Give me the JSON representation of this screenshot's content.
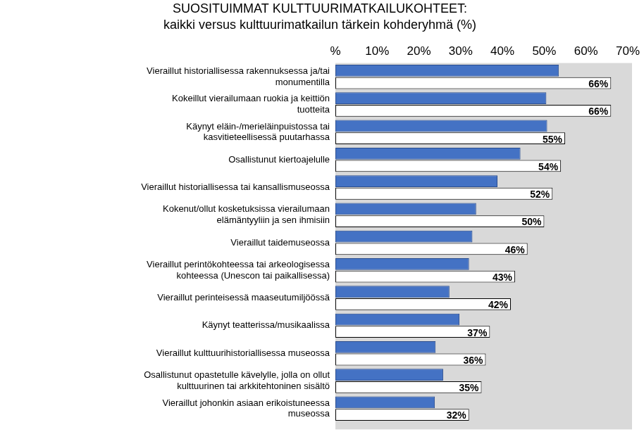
{
  "chart_data": {
    "type": "bar",
    "title": "SUOSITUIMMAT KULTTUURIMATKAILUKOHTEET:",
    "subtitle": "kaikki versus kulttuurimatkailun tärkein kohderyhmä (%)",
    "orientation": "horizontal",
    "categories": [
      "Vieraillut historiallisessa rakennuksessa ja/tai monumentilla",
      "Kokeillut vierailumaan ruokia ja keittiön tuotteita",
      "Käynyt eläin-/merieläinpuistossa tai kasvitieteellisessä puutarhassa",
      "Osallistunut kiertoajelulle",
      "Vieraillut historiallisessa tai kansallismuseossa",
      "Kokenut/ollut kosketuksissa vierailumaan elämäntyyliin ja sen ihmisiin",
      "Vieraillut taidemuseossa",
      "Vieraillut perintökohteessa tai arkeologisessa kohteessa (Unescon tai paikallisessa)",
      "Vieraillut perinteisessä maaseutumiljöössä",
      "Käynyt teatterissa/musikaalissa",
      "Vieraillut kulttuurihistoriallisessa museossa",
      "Osallistunut opastetulle kävelylle, jolla on ollut kulttuurinen tai arkkitehtoninen sisältö",
      "Vieraillut johonkin asiaan erikoistuneessa museossa"
    ],
    "series": [
      {
        "color": "#4472c4",
        "values": [
          53.5,
          50.5,
          50.7,
          44.3,
          38.8,
          33.7,
          32.8,
          32,
          27.3,
          29.7,
          24,
          25.8,
          23.8
        ]
      },
      {
        "color": "#ffffff",
        "values": [
          66,
          66,
          55,
          54,
          52,
          50,
          46,
          43,
          42,
          37,
          36,
          35,
          32
        ],
        "data_labels": true,
        "value_labels": [
          "66%",
          "66%",
          "55%",
          "54%",
          "52%",
          "50%",
          "46%",
          "43%",
          "42%",
          "37%",
          "36%",
          "35%",
          "32%"
        ]
      }
    ],
    "xlim": [
      0,
      70
    ],
    "xticks": [
      {
        "value": 0,
        "label": "%"
      },
      {
        "value": 10,
        "label": "10%"
      },
      {
        "value": 20,
        "label": "20%"
      },
      {
        "value": 30,
        "label": "30%"
      },
      {
        "value": 40,
        "label": "40%"
      },
      {
        "value": 50,
        "label": "50%"
      },
      {
        "value": 60,
        "label": "60%"
      },
      {
        "value": 70,
        "label": "70%"
      }
    ],
    "grid": false
  }
}
